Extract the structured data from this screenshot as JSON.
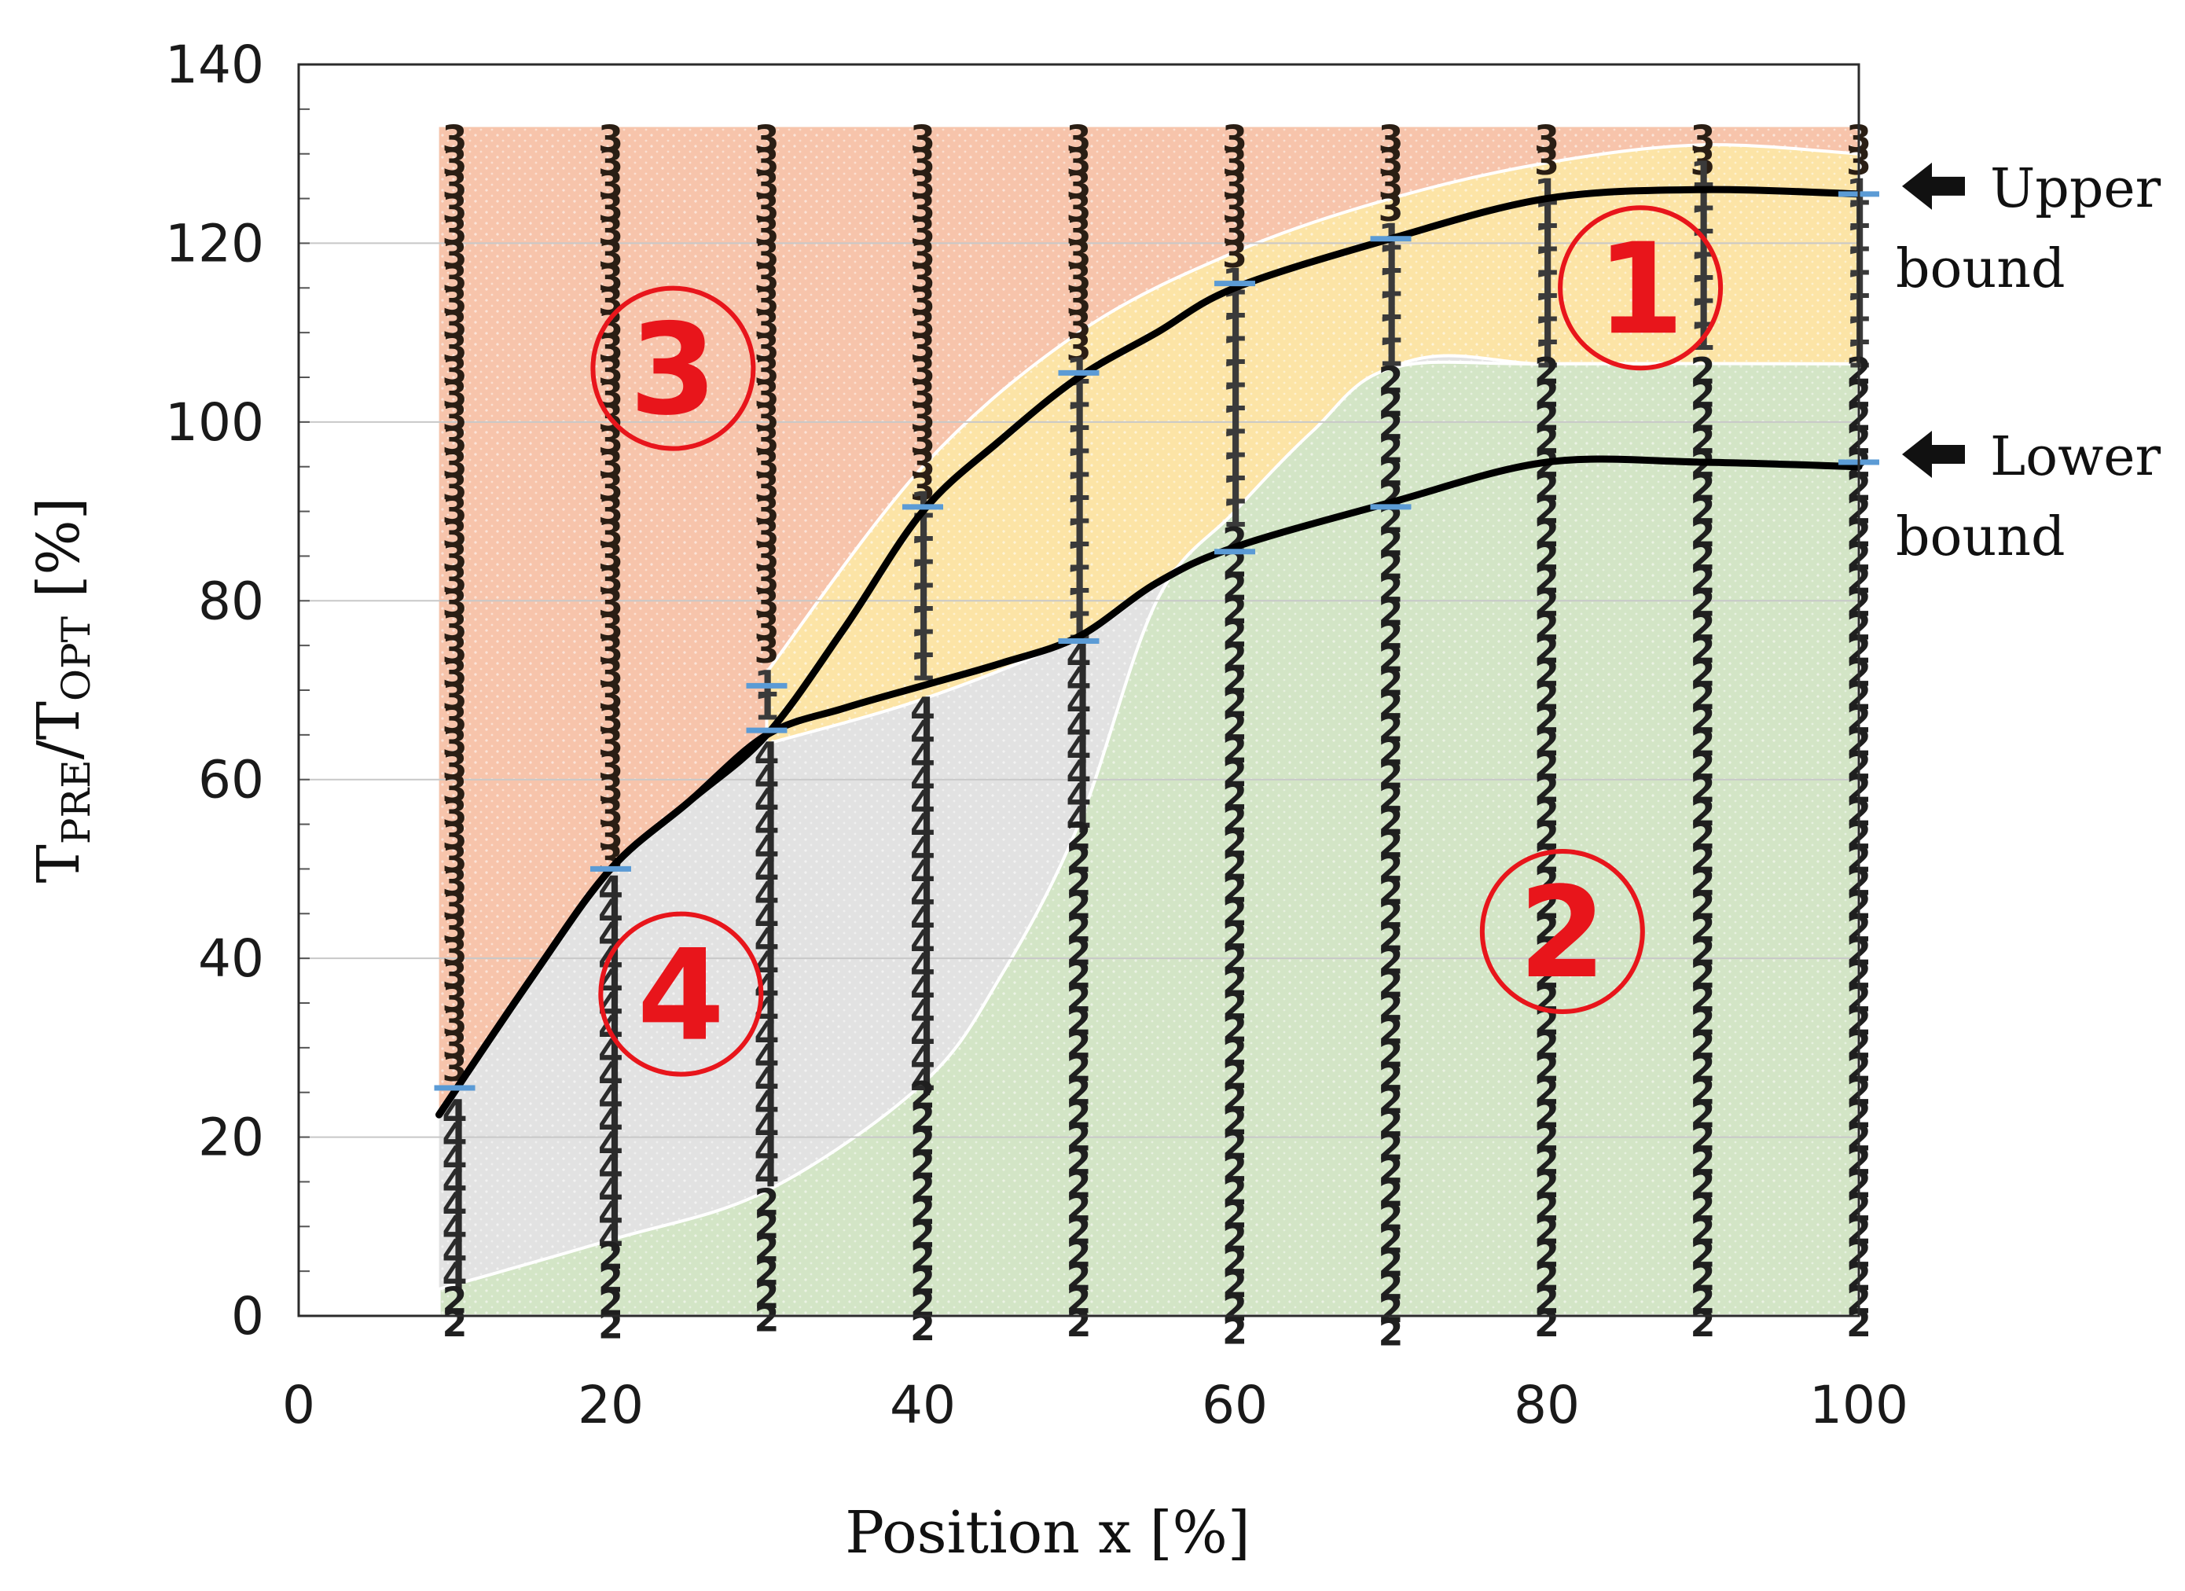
{
  "chart_data": {
    "type": "line",
    "xlabel": "Position x [%]",
    "ylabel": "T",
    "ylabel_sub1": "PRE",
    "ylabel_mid": "/T",
    "ylabel_sub2": "OPT",
    "ylabel_tail": " [%]",
    "xlim": [
      0,
      100
    ],
    "ylim": [
      0,
      140
    ],
    "xticks": [
      0,
      20,
      40,
      60,
      80,
      100
    ],
    "yticks": [
      0,
      20,
      40,
      60,
      80,
      100,
      120,
      140
    ],
    "grid": true,
    "series": [
      {
        "name": "Upper bound",
        "color": "#000000",
        "x": [
          9,
          15,
          20,
          25,
          30,
          35,
          40,
          45,
          50,
          55,
          60,
          70,
          80,
          90,
          100
        ],
        "y": [
          22.5,
          38,
          50,
          57.5,
          65,
          77,
          90,
          98,
          105,
          110,
          115,
          120.5,
          125,
          126,
          125.5
        ]
      },
      {
        "name": "Lower bound",
        "color": "#000000",
        "x": [
          9,
          15,
          20,
          25,
          30,
          35,
          40,
          45,
          50,
          55,
          60,
          70,
          80,
          90,
          100
        ],
        "y": [
          22.5,
          38,
          50,
          57.5,
          65,
          68,
          70.5,
          73,
          76,
          82,
          86,
          91,
          95.5,
          95.5,
          95
        ]
      }
    ],
    "markers": {
      "color": "#5b9bd5",
      "points": [
        [
          10,
          25.5
        ],
        [
          20,
          50
        ],
        [
          30,
          70.5
        ],
        [
          30,
          65.5
        ],
        [
          40,
          90.5
        ],
        [
          50,
          105.5
        ],
        [
          50,
          75.5
        ],
        [
          60,
          115.5
        ],
        [
          60,
          85.5
        ],
        [
          70,
          120.5
        ],
        [
          70,
          90.5
        ],
        [
          100,
          125.5
        ],
        [
          100,
          95.5
        ]
      ]
    },
    "region_colors": {
      "region1": "#fce4a6",
      "region2": "#d3e5c6",
      "region3": "#f7c4ab",
      "region4": "#e2e2e2"
    },
    "regions": {
      "region3": {
        "x": [
          9,
          100
        ],
        "top": 133
      },
      "region1_upper": {
        "x": [
          30,
          40,
          50,
          60,
          70,
          80,
          90,
          100
        ],
        "y": [
          72,
          95,
          110,
          119,
          125,
          129,
          131,
          130
        ]
      },
      "region1_lower": {
        "x": [
          30,
          40,
          50,
          55,
          60,
          70,
          80,
          90,
          100
        ],
        "y": [
          64,
          69,
          76,
          82,
          89,
          106,
          106.5,
          106.5,
          106.5
        ]
      },
      "region2_upper": {
        "x": [
          9,
          20,
          30,
          40,
          45,
          50,
          55,
          60,
          65,
          70,
          80,
          100
        ],
        "y": [
          3,
          8.5,
          14,
          26,
          38,
          55,
          80,
          90,
          99,
          106,
          106.5,
          106.5
        ]
      }
    },
    "digit_columns": [
      {
        "x": 10,
        "segments": [
          {
            "digit": "3",
            "from": 26,
            "to": 133
          },
          {
            "digit": "4",
            "from": 3,
            "to": 24
          },
          {
            "digit": "2",
            "from": -2,
            "to": 3
          }
        ]
      },
      {
        "x": 20,
        "segments": [
          {
            "digit": "3",
            "from": 51,
            "to": 133
          },
          {
            "digit": "4",
            "from": 8,
            "to": 49
          },
          {
            "digit": "2",
            "from": -2,
            "to": 8
          }
        ]
      },
      {
        "x": 30,
        "segments": [
          {
            "digit": "3",
            "from": 72,
            "to": 133
          },
          {
            "digit": "1",
            "from": 66,
            "to": 72
          },
          {
            "digit": "4",
            "from": 14,
            "to": 64
          },
          {
            "digit": "2",
            "from": -2,
            "to": 14
          }
        ]
      },
      {
        "x": 40,
        "segments": [
          {
            "digit": "3",
            "from": 92,
            "to": 133
          },
          {
            "digit": "1",
            "from": 70,
            "to": 92
          },
          {
            "digit": "4",
            "from": 26,
            "to": 69
          },
          {
            "digit": "2",
            "from": -2,
            "to": 26
          }
        ]
      },
      {
        "x": 50,
        "segments": [
          {
            "digit": "3",
            "from": 107,
            "to": 133
          },
          {
            "digit": "1",
            "from": 77,
            "to": 107
          },
          {
            "digit": "4",
            "from": 55,
            "to": 75
          },
          {
            "digit": "2",
            "from": -2,
            "to": 55
          }
        ]
      },
      {
        "x": 60,
        "segments": [
          {
            "digit": "3",
            "from": 117,
            "to": 133
          },
          {
            "digit": "1",
            "from": 88,
            "to": 117
          },
          {
            "digit": "2",
            "from": -2,
            "to": 88
          }
        ]
      },
      {
        "x": 70,
        "segments": [
          {
            "digit": "3",
            "from": 122,
            "to": 133
          },
          {
            "digit": "1",
            "from": 106,
            "to": 122
          },
          {
            "digit": "2",
            "from": -2,
            "to": 106
          }
        ]
      },
      {
        "x": 80,
        "segments": [
          {
            "digit": "3",
            "from": 127,
            "to": 133
          },
          {
            "digit": "1",
            "from": 107,
            "to": 127
          },
          {
            "digit": "2",
            "from": -2,
            "to": 107
          }
        ]
      },
      {
        "x": 90,
        "segments": [
          {
            "digit": "3",
            "from": 129,
            "to": 133
          },
          {
            "digit": "1",
            "from": 107,
            "to": 129
          },
          {
            "digit": "2",
            "from": -2,
            "to": 107
          }
        ]
      },
      {
        "x": 100,
        "segments": [
          {
            "digit": "3",
            "from": 129,
            "to": 133
          },
          {
            "digit": "1",
            "from": 107,
            "to": 127
          },
          {
            "digit": "2",
            "from": -2,
            "to": 107
          }
        ]
      }
    ],
    "region_labels": [
      {
        "text": "1",
        "x": 86,
        "y": 115
      },
      {
        "text": "2",
        "x": 81,
        "y": 43
      },
      {
        "text": "3",
        "x": 24,
        "y": 106
      },
      {
        "text": "4",
        "x": 24.5,
        "y": 36
      }
    ],
    "annotations": [
      {
        "lines": [
          "Upper",
          "bound"
        ],
        "y": 125.5
      },
      {
        "lines": [
          "Lower",
          "bound"
        ],
        "y": 95.5
      }
    ]
  }
}
